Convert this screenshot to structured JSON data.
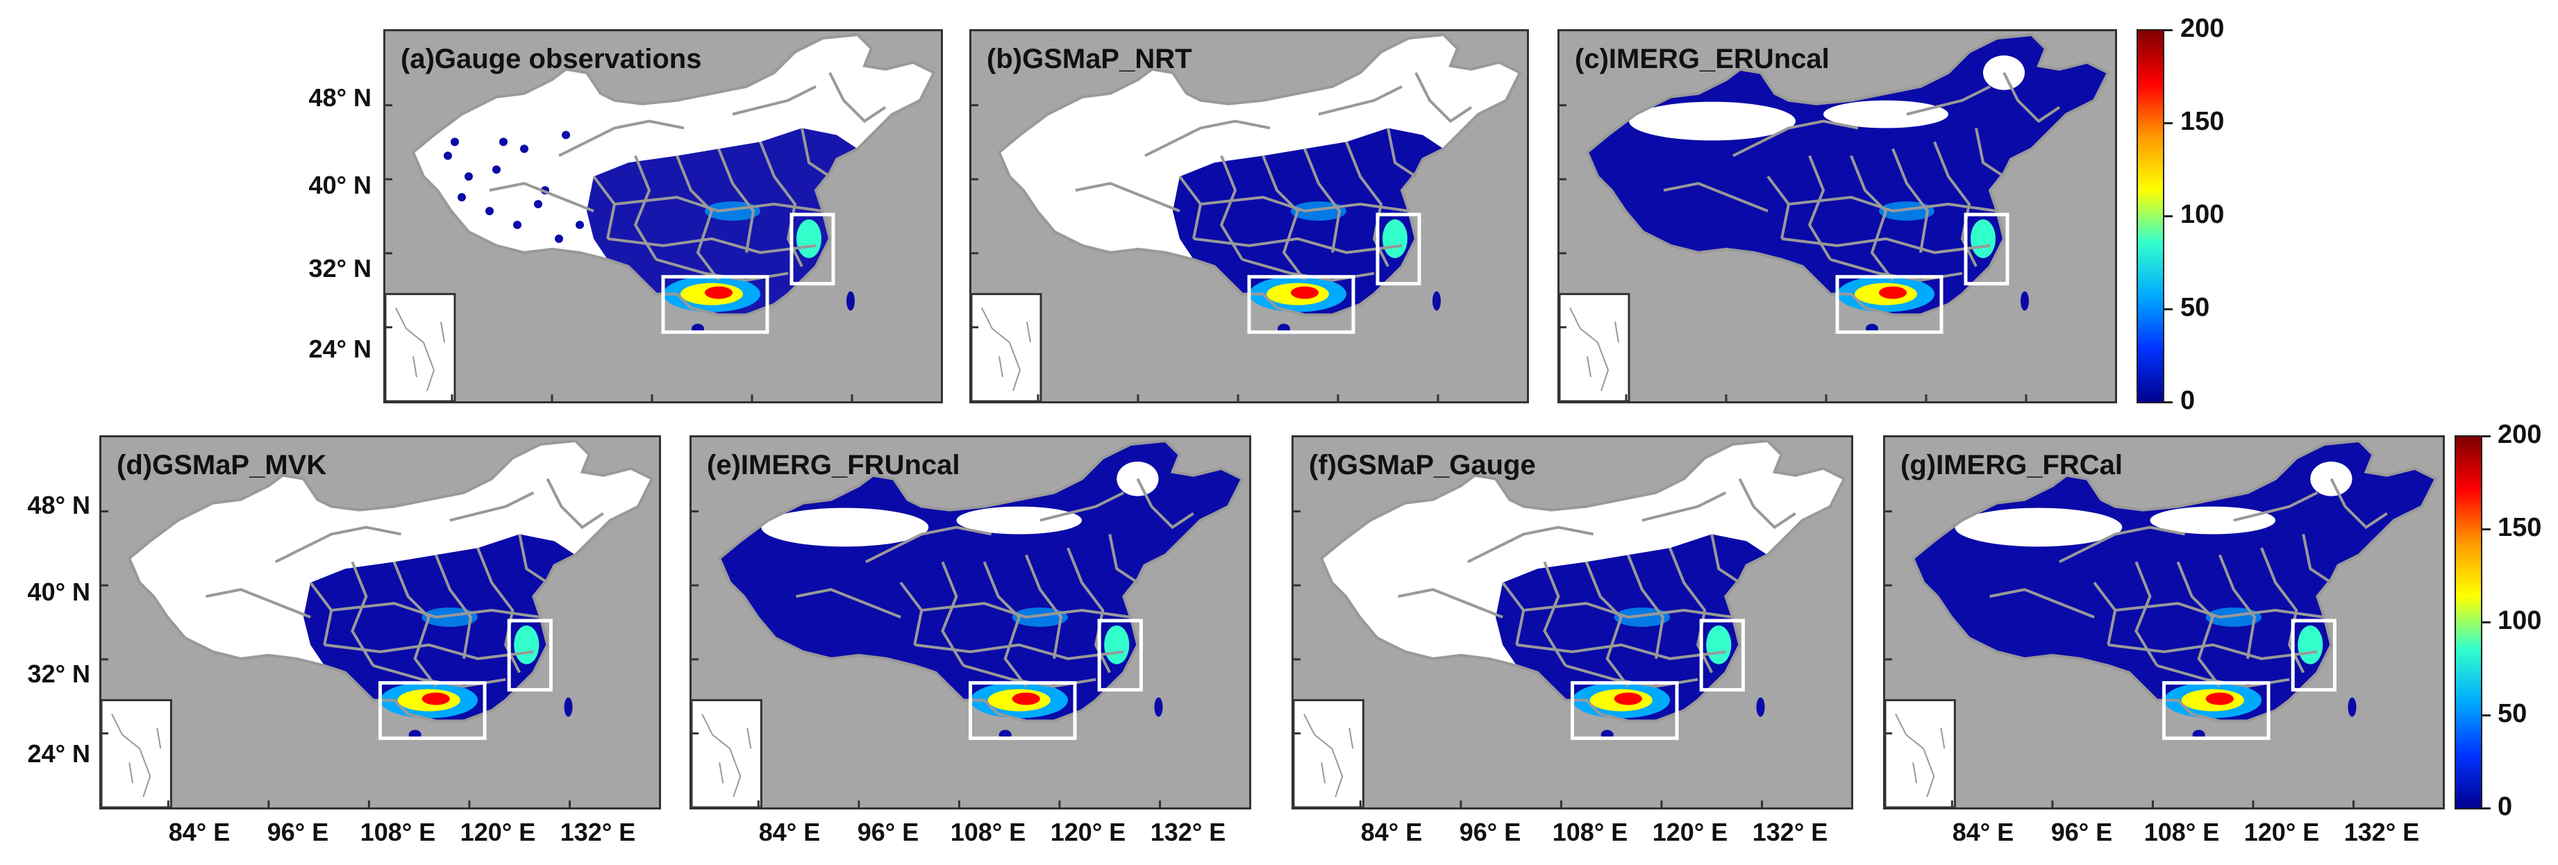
{
  "panels": [
    {
      "title": "(a)Gauge observations",
      "variant": "gauge"
    },
    {
      "title": "(b)GSMaP_NRT",
      "variant": "sparse"
    },
    {
      "title": "(c)IMERG_ERUncal",
      "variant": "full"
    },
    {
      "title": "(d)GSMaP_MVK",
      "variant": "sparse"
    },
    {
      "title": "(e)IMERG_FRUncal",
      "variant": "full"
    },
    {
      "title": "(f)GSMaP_Gauge",
      "variant": "blocky"
    },
    {
      "title": "(g)IMERG_FRCal",
      "variant": "full"
    }
  ],
  "lat_labels": [
    "48° N",
    "40° N",
    "32° N",
    "24° N"
  ],
  "lon_labels": [
    "84° E",
    "96° E",
    "108° E",
    "120° E",
    "132° E"
  ],
  "colorbar": {
    "ticks": [
      "200",
      "150",
      "100",
      "50",
      "0"
    ],
    "colors": [
      "#7f0000",
      "#ff0000",
      "#ff9900",
      "#ffff00",
      "#33ffcc",
      "#00aaff",
      "#0033ff",
      "#00008f"
    ]
  },
  "colors": {
    "ocean": "#a6a6a6",
    "land_nodata": "#ffffff",
    "base_rain": "#0a0aa8",
    "boundary": "#999999",
    "box": "#ffffff"
  }
}
